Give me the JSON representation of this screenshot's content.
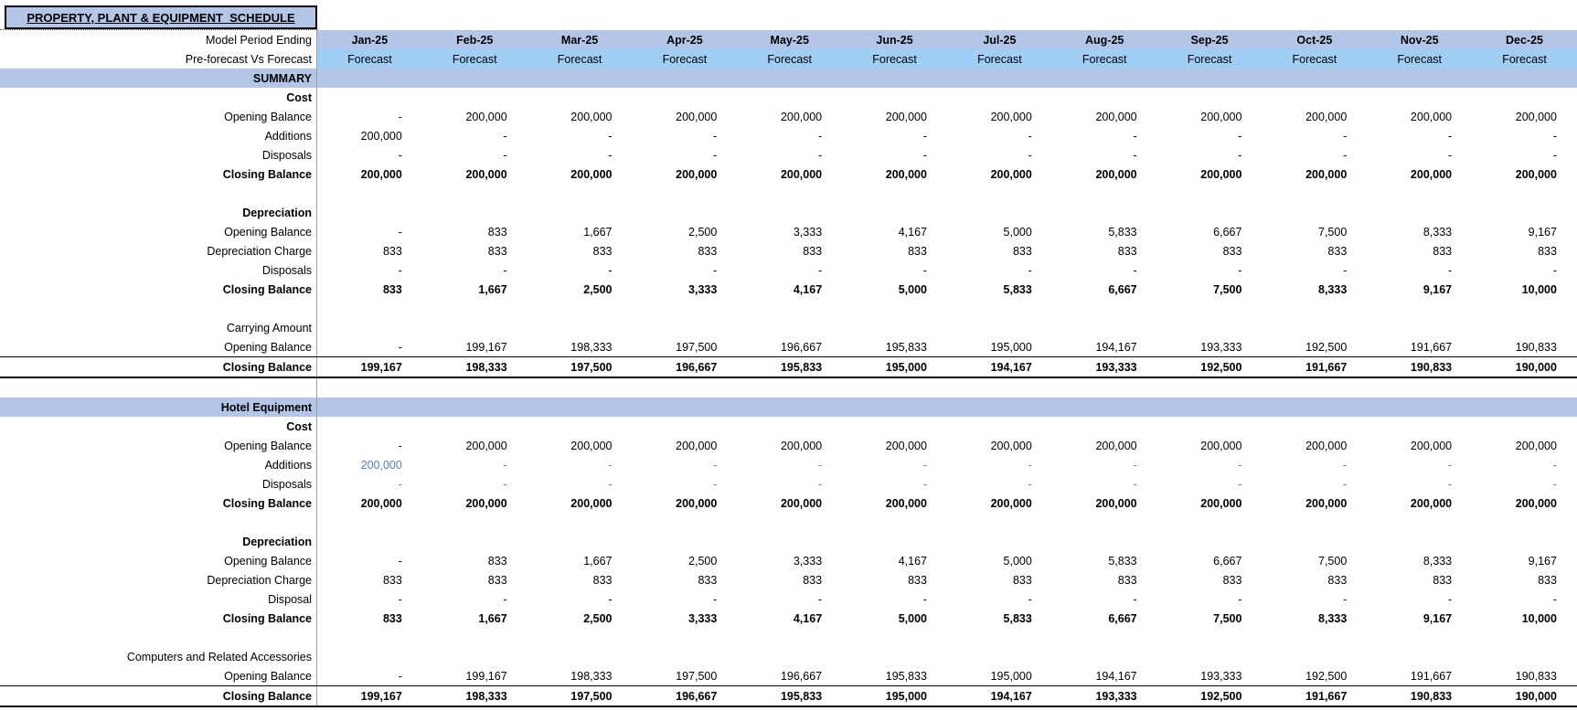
{
  "title": "PROPERTY, PLANT & EQUIPMENT  SCHEDULE",
  "colors": {
    "band_blue": "#B4C6E7",
    "forecast_blue": "#A0CEF4",
    "input_blue": "#4E80C8",
    "grid_gray": "#9D9D9D"
  },
  "columns": [
    "Jan-25",
    "Feb-25",
    "Mar-25",
    "Apr-25",
    "May-25",
    "Jun-25",
    "Jul-25",
    "Aug-25",
    "Sep-25",
    "Oct-25",
    "Nov-25",
    "Dec-25"
  ],
  "rows": [
    {
      "label": "Model Period Ending",
      "band": "data",
      "center": true,
      "values_bold": true,
      "values": [
        "Jan-25",
        "Feb-25",
        "Mar-25",
        "Apr-25",
        "May-25",
        "Jun-25",
        "Jul-25",
        "Aug-25",
        "Sep-25",
        "Oct-25",
        "Nov-25",
        "Dec-25"
      ]
    },
    {
      "label": "Pre-forecast Vs Forecast",
      "band": "light",
      "center": true,
      "values": [
        "Forecast",
        "Forecast",
        "Forecast",
        "Forecast",
        "Forecast",
        "Forecast",
        "Forecast",
        "Forecast",
        "Forecast",
        "Forecast",
        "Forecast",
        "Forecast"
      ]
    },
    {
      "label": "SUMMARY",
      "band": "full",
      "label_bold": true
    },
    {
      "label": "Cost",
      "label_bold": true
    },
    {
      "label": "Opening Balance",
      "values": [
        "-",
        "200,000",
        "200,000",
        "200,000",
        "200,000",
        "200,000",
        "200,000",
        "200,000",
        "200,000",
        "200,000",
        "200,000",
        "200,000"
      ]
    },
    {
      "label": "Additions",
      "values": [
        "200,000",
        "-",
        "-",
        "-",
        "-",
        "-",
        "-",
        "-",
        "-",
        "-",
        "-",
        "-"
      ]
    },
    {
      "label": "Disposals",
      "values": [
        "-",
        "-",
        "-",
        "-",
        "-",
        "-",
        "-",
        "-",
        "-",
        "-",
        "-",
        "-"
      ]
    },
    {
      "label": "Closing Balance",
      "label_bold": true,
      "values_bold": true,
      "values": [
        "200,000",
        "200,000",
        "200,000",
        "200,000",
        "200,000",
        "200,000",
        "200,000",
        "200,000",
        "200,000",
        "200,000",
        "200,000",
        "200,000"
      ]
    },
    {
      "label": ""
    },
    {
      "label": "Depreciation",
      "label_bold": true
    },
    {
      "label": "Opening Balance",
      "values": [
        "-",
        "833",
        "1,667",
        "2,500",
        "3,333",
        "4,167",
        "5,000",
        "5,833",
        "6,667",
        "7,500",
        "8,333",
        "9,167"
      ]
    },
    {
      "label": "Depreciation Charge",
      "values": [
        "833",
        "833",
        "833",
        "833",
        "833",
        "833",
        "833",
        "833",
        "833",
        "833",
        "833",
        "833"
      ]
    },
    {
      "label": "Disposals",
      "values": [
        "-",
        "-",
        "-",
        "-",
        "-",
        "-",
        "-",
        "-",
        "-",
        "-",
        "-",
        "-"
      ]
    },
    {
      "label": "Closing Balance",
      "label_bold": true,
      "values_bold": true,
      "values": [
        "833",
        "1,667",
        "2,500",
        "3,333",
        "4,167",
        "5,000",
        "5,833",
        "6,667",
        "7,500",
        "8,333",
        "9,167",
        "10,000"
      ]
    },
    {
      "label": ""
    },
    {
      "label": "Carrying Amount"
    },
    {
      "label": "Opening Balance",
      "values": [
        "-",
        "199,167",
        "198,333",
        "197,500",
        "196,667",
        "195,833",
        "195,000",
        "194,167",
        "193,333",
        "192,500",
        "191,667",
        "190,833"
      ]
    },
    {
      "label": "Closing Balance",
      "label_bold": true,
      "values_bold": true,
      "total": true,
      "values": [
        "199,167",
        "198,333",
        "197,500",
        "196,667",
        "195,833",
        "195,000",
        "194,167",
        "193,333",
        "192,500",
        "191,667",
        "190,833",
        "190,000"
      ]
    },
    {
      "label": ""
    },
    {
      "label": "Hotel Equipment",
      "band": "full",
      "label_bold": true
    },
    {
      "label": "Cost",
      "label_bold": true
    },
    {
      "label": "Opening Balance",
      "values": [
        "-",
        "200,000",
        "200,000",
        "200,000",
        "200,000",
        "200,000",
        "200,000",
        "200,000",
        "200,000",
        "200,000",
        "200,000",
        "200,000"
      ]
    },
    {
      "label": "Additions",
      "blue": true,
      "values": [
        "200,000",
        "-",
        "-",
        "-",
        "-",
        "-",
        "-",
        "-",
        "-",
        "-",
        "-",
        "-"
      ]
    },
    {
      "label": "Disposals",
      "blue": true,
      "values": [
        "-",
        "-",
        "-",
        "-",
        "-",
        "-",
        "-",
        "-",
        "-",
        "-",
        "-",
        "-"
      ]
    },
    {
      "label": "Closing Balance",
      "label_bold": true,
      "values_bold": true,
      "values": [
        "200,000",
        "200,000",
        "200,000",
        "200,000",
        "200,000",
        "200,000",
        "200,000",
        "200,000",
        "200,000",
        "200,000",
        "200,000",
        "200,000"
      ]
    },
    {
      "label": ""
    },
    {
      "label": "Depreciation",
      "label_bold": true
    },
    {
      "label": "Opening Balance",
      "values": [
        "-",
        "833",
        "1,667",
        "2,500",
        "3,333",
        "4,167",
        "5,000",
        "5,833",
        "6,667",
        "7,500",
        "8,333",
        "9,167"
      ]
    },
    {
      "label": "Depreciation Charge",
      "values": [
        "833",
        "833",
        "833",
        "833",
        "833",
        "833",
        "833",
        "833",
        "833",
        "833",
        "833",
        "833"
      ]
    },
    {
      "label": "Disposal",
      "values": [
        "-",
        "-",
        "-",
        "-",
        "-",
        "-",
        "-",
        "-",
        "-",
        "-",
        "-",
        "-"
      ]
    },
    {
      "label": "Closing Balance",
      "label_bold": true,
      "values_bold": true,
      "values": [
        "833",
        "1,667",
        "2,500",
        "3,333",
        "4,167",
        "5,000",
        "5,833",
        "6,667",
        "7,500",
        "8,333",
        "9,167",
        "10,000"
      ]
    },
    {
      "label": ""
    },
    {
      "label": "Computers and Related Accessories"
    },
    {
      "label": "Opening Balance",
      "values": [
        "-",
        "199,167",
        "198,333",
        "197,500",
        "196,667",
        "195,833",
        "195,000",
        "194,167",
        "193,333",
        "192,500",
        "191,667",
        "190,833"
      ]
    },
    {
      "label": "Closing Balance",
      "label_bold": true,
      "values_bold": true,
      "total": true,
      "values": [
        "199,167",
        "198,333",
        "197,500",
        "196,667",
        "195,833",
        "195,000",
        "194,167",
        "193,333",
        "192,500",
        "191,667",
        "190,833",
        "190,000"
      ]
    }
  ]
}
